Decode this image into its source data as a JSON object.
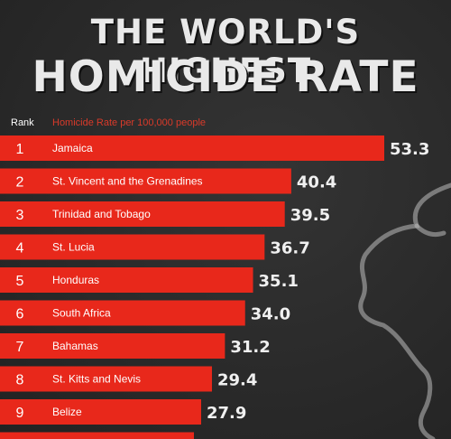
{
  "title": {
    "line1": "THE WORLD'S HIGHEST",
    "line2": "HOMICIDE RATE"
  },
  "headers": {
    "rank": "Rank",
    "metric": "Homicide Rate per 100,000 people"
  },
  "colors": {
    "bar": "#e8281b",
    "background": "#2a2a2a",
    "accent_text": "#d93a2a"
  },
  "chart_data": {
    "type": "bar",
    "orientation": "horizontal",
    "title": "THE WORLD'S HIGHEST HOMICIDE RATE",
    "xlabel": "Homicide Rate per 100,000 people",
    "ylabel": "Rank",
    "ranks": [
      "1",
      "2",
      "3",
      "4",
      "5",
      "6",
      "7",
      "8",
      "9"
    ],
    "categories": [
      "Jamaica",
      "St. Vincent and the Grenadines",
      "Trinidad and Tobago",
      "St. Lucia",
      "Honduras",
      "South Africa",
      "Bahamas",
      "St. Kitts and Nevis",
      "Belize"
    ],
    "values": [
      53.3,
      40.4,
      39.5,
      36.7,
      35.1,
      34.0,
      31.2,
      29.4,
      27.9
    ],
    "value_labels": [
      "53.3",
      "40.4",
      "39.5",
      "36.7",
      "35.1",
      "34.0",
      "31.2",
      "29.4",
      "27.9"
    ],
    "grid": false,
    "legend": "none"
  }
}
